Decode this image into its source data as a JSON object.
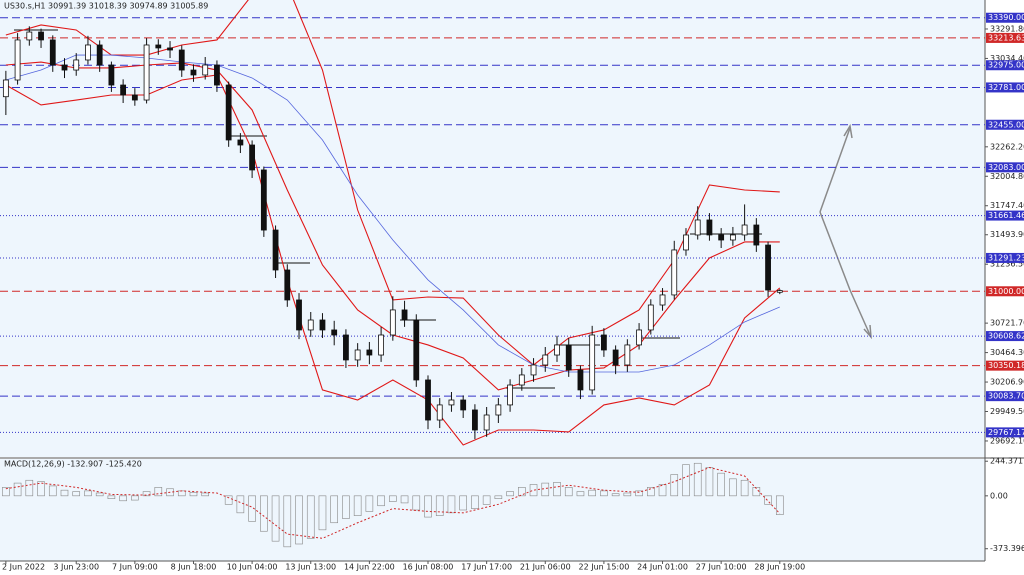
{
  "chart_data": {
    "type": "candlestick",
    "header": "US30.s,H1  30991.39 31018.39 30974.89 31005.89",
    "xlim": [
      -0.5,
      83.5
    ],
    "ylim": [
      29552,
      33545
    ],
    "xticks": [
      {
        "value": 0,
        "label": "2 Jun 2022"
      },
      {
        "value": 6,
        "label": "3 Jun 23:00"
      },
      {
        "value": 11,
        "label": "7 Jun 09:00"
      },
      {
        "value": 16,
        "label": "8 Jun 18:00"
      },
      {
        "value": 21,
        "label": "10 Jun 04:00"
      },
      {
        "value": 26,
        "label": "13 Jun 13:00"
      },
      {
        "value": 31,
        "label": "14 Jun 22:00"
      },
      {
        "value": 36,
        "label": "16 Jun 08:00"
      },
      {
        "value": 41,
        "label": "17 Jun 17:00"
      },
      {
        "value": 46,
        "label": "21 Jun 06:00"
      },
      {
        "value": 51,
        "label": "22 Jun 15:00"
      },
      {
        "value": 56,
        "label": "24 Jun 01:00"
      },
      {
        "value": 61,
        "label": "27 Jun 10:00"
      },
      {
        "value": 66,
        "label": "28 Jun 19:00"
      }
    ],
    "yticks": [
      {
        "value": 33291.8,
        "label": "33291.80"
      },
      {
        "value": 33034.4,
        "label": "33034.40"
      },
      {
        "value": 32262.2,
        "label": "32262.20"
      },
      {
        "value": 32004.8,
        "label": "32004.80"
      },
      {
        "value": 31747.4,
        "label": "31747.40"
      },
      {
        "value": 31493.9,
        "label": "31493.90"
      },
      {
        "value": 31236.5,
        "label": "31236.50"
      },
      {
        "value": 30721.7,
        "label": "30721.70"
      },
      {
        "value": 30464.3,
        "label": "30464.30"
      },
      {
        "value": 30206.9,
        "label": "30206.90"
      },
      {
        "value": 29949.5,
        "label": "29949.50"
      },
      {
        "value": 29692.1,
        "label": "29692.10"
      }
    ],
    "levels": [
      {
        "value": 33390,
        "label": "33390.00",
        "color": "#3434c8",
        "style": "dashed"
      },
      {
        "value": 33213.63,
        "label": "33213.63",
        "color": "#d02828",
        "style": "dashed"
      },
      {
        "value": 32975,
        "label": "32975.00",
        "color": "#3434c8",
        "style": "dashed"
      },
      {
        "value": 32781,
        "label": "32781.00",
        "color": "#3434c8",
        "style": "dashed"
      },
      {
        "value": 32455,
        "label": "32455.00",
        "color": "#3434c8",
        "style": "dashed"
      },
      {
        "value": 32083,
        "label": "32083.00",
        "color": "#3434c8",
        "style": "dashed"
      },
      {
        "value": 31661.46,
        "label": "31661.46",
        "color": "#3434c8",
        "style": "dotted"
      },
      {
        "value": 31291.23,
        "label": "31291.23",
        "color": "#3434c8",
        "style": "dotted"
      },
      {
        "value": 31000,
        "label": "31000.00",
        "color": "#d02828",
        "style": "dashed"
      },
      {
        "value": 30608.62,
        "label": "30608.62",
        "color": "#3434c8",
        "style": "dotted"
      },
      {
        "value": 30350.18,
        "label": "30350.18",
        "color": "#d02828",
        "style": "dashed"
      },
      {
        "value": 30083.7,
        "label": "30083.70",
        "color": "#3434c8",
        "style": "dashed"
      },
      {
        "value": 29767.17,
        "label": "29767.17",
        "color": "#3434c8",
        "style": "dotted"
      }
    ],
    "candles": {
      "x": [
        0,
        1,
        2,
        3,
        4,
        5,
        6,
        7,
        8,
        9,
        10,
        11,
        12,
        13,
        14,
        15,
        16,
        17,
        18,
        19,
        20,
        21,
        22,
        23,
        24,
        25,
        26,
        27,
        28,
        29,
        30,
        31,
        32,
        33,
        34,
        35,
        36,
        37,
        38,
        39,
        40,
        41,
        42,
        43,
        44,
        45,
        46,
        47,
        48,
        49,
        50,
        51,
        52,
        53,
        54,
        55,
        56,
        57,
        58,
        59,
        60,
        61,
        62,
        63,
        64,
        65,
        66
      ],
      "open": [
        32700,
        32846,
        33196,
        33265,
        33196,
        32977,
        32933,
        33021,
        33152,
        32977,
        32802,
        32715,
        32671,
        33152,
        33126,
        33108,
        32933,
        32890,
        32977,
        32802,
        32322,
        32278,
        32060,
        31535,
        31186,
        30924,
        30662,
        30749,
        30662,
        30618,
        30400,
        30487,
        30443,
        30618,
        30837,
        30749,
        30225,
        29875,
        30007,
        30050,
        29963,
        29788,
        29919,
        30007,
        30181,
        30269,
        30356,
        30443,
        30531,
        30312,
        30138,
        30618,
        30487,
        30356,
        30531,
        30662,
        30880,
        30968,
        31361,
        31492,
        31623,
        31492,
        31448,
        31492,
        31579,
        31404,
        30991.39
      ],
      "high": [
        32926,
        33256,
        33315,
        33295,
        33236,
        33037,
        33081,
        33232,
        33192,
        33007,
        32852,
        32775,
        33212,
        33202,
        33186,
        33148,
        32983,
        33047,
        33017,
        32832,
        32382,
        32318,
        32090,
        31575,
        31236,
        30984,
        30819,
        30809,
        30742,
        30668,
        30547,
        30557,
        30688,
        30957,
        30917,
        30799,
        30265,
        30067,
        30120,
        30090,
        30013,
        29989,
        30067,
        30231,
        30329,
        30416,
        30513,
        30611,
        30591,
        30352,
        30698,
        30678,
        30527,
        30581,
        30722,
        30930,
        31028,
        31441,
        31552,
        31743,
        31683,
        31552,
        31562,
        31759,
        31639,
        31434,
        31018.39
      ],
      "low": [
        32540,
        32806,
        33146,
        33126,
        32917,
        32863,
        32883,
        32981,
        32917,
        32742,
        32645,
        32621,
        32641,
        33066,
        33038,
        32873,
        32830,
        32850,
        32742,
        32262,
        32208,
        31990,
        31475,
        31116,
        30864,
        30582,
        30602,
        30592,
        30528,
        30330,
        30340,
        30363,
        30383,
        30568,
        30689,
        30165,
        29795,
        29805,
        29947,
        29893,
        29708,
        29728,
        29849,
        29947,
        30131,
        30209,
        30296,
        30383,
        30252,
        30058,
        30098,
        30427,
        30276,
        30296,
        30491,
        30622,
        30830,
        30928,
        31311,
        31452,
        31442,
        31378,
        31398,
        31442,
        31344,
        30951,
        30974.89
      ],
      "close": [
        32846,
        33196,
        33265,
        33196,
        32977,
        32933,
        33021,
        33152,
        32977,
        32802,
        32715,
        32671,
        33152,
        33126,
        33108,
        32933,
        32890,
        32977,
        32802,
        32322,
        32278,
        32060,
        31535,
        31186,
        30924,
        30662,
        30749,
        30662,
        30618,
        30400,
        30487,
        30443,
        30618,
        30837,
        30749,
        30225,
        29875,
        30007,
        30050,
        29963,
        29788,
        29919,
        30007,
        30181,
        30269,
        30356,
        30443,
        30531,
        30312,
        30138,
        30618,
        30487,
        30356,
        30531,
        30662,
        30880,
        30968,
        31361,
        31492,
        31623,
        31492,
        31448,
        31492,
        31579,
        31404,
        31011,
        31005.89
      ]
    },
    "overlays": {
      "x": [
        0,
        3,
        6,
        9,
        12,
        15,
        18,
        21,
        24,
        27,
        30,
        33,
        36,
        39,
        42,
        45,
        48,
        51,
        54,
        57,
        60,
        63,
        66
      ],
      "lines": [
        {
          "color": "#e01818",
          "values": [
            33239,
            33327,
            33283,
            33064,
            33064,
            33152,
            33196,
            33589,
            33676,
            32933,
            31710,
            30924,
            30950,
            30941,
            30618,
            30356,
            30592,
            30662,
            30837,
            31273,
            31929,
            31885,
            31868
          ]
        },
        {
          "color": "#e01818",
          "values": [
            32977,
            33003,
            32951,
            32951,
            32977,
            32995,
            32933,
            32584,
            31885,
            31230,
            30837,
            30618,
            30531,
            30417,
            30138,
            30225,
            30312,
            30330,
            30531,
            30924,
            31291,
            31431,
            31431
          ]
        },
        {
          "color": "#e01818",
          "values": [
            32802,
            32628,
            32671,
            32715,
            32715,
            32846,
            32890,
            32234,
            31099,
            30138,
            30050,
            30225,
            30050,
            29657,
            29788,
            29788,
            29771,
            30007,
            30068,
            30007,
            30181,
            30767,
            31029
          ]
        },
        {
          "color": "#5566dd",
          "values": [
            32846,
            32933,
            33064,
            33064,
            33038,
            33003,
            32977,
            32864,
            32671,
            32322,
            31841,
            31448,
            31099,
            30837,
            30531,
            30356,
            30295,
            30295,
            30295,
            30356,
            30531,
            30732,
            30863
          ]
        }
      ]
    },
    "macd": {
      "label": "MACD(12,26,9) -132.907 -125.420",
      "ylim": [
        -460,
        260
      ],
      "yticks": [
        244.371,
        {
          "value": 0,
          "label": "0.00"
        },
        -373.396
      ],
      "histogram": {
        "color": "#888888",
        "values": [
          60,
          90,
          110,
          100,
          70,
          40,
          30,
          35,
          20,
          -20,
          -35,
          -30,
          30,
          60,
          50,
          35,
          25,
          20,
          0,
          -60,
          -120,
          -180,
          -250,
          -320,
          -360,
          -340,
          -300,
          -240,
          -190,
          -160,
          -140,
          -110,
          -70,
          -40,
          -50,
          -100,
          -150,
          -140,
          -120,
          -100,
          -90,
          -60,
          -20,
          30,
          60,
          80,
          90,
          95,
          60,
          30,
          40,
          35,
          15,
          20,
          35,
          60,
          80,
          150,
          220,
          230,
          200,
          160,
          120,
          110,
          60,
          -60,
          -132.907
        ]
      },
      "signal": {
        "color": "#d02828",
        "x": [
          0,
          3,
          6,
          9,
          12,
          15,
          18,
          21,
          24,
          27,
          30,
          33,
          36,
          39,
          42,
          45,
          48,
          51,
          54,
          57,
          60,
          63,
          66
        ],
        "values": [
          50,
          90,
          60,
          10,
          5,
          35,
          20,
          -80,
          -270,
          -300,
          -190,
          -90,
          -110,
          -120,
          -60,
          40,
          75,
          40,
          25,
          100,
          200,
          140,
          -125.42
        ]
      }
    }
  }
}
